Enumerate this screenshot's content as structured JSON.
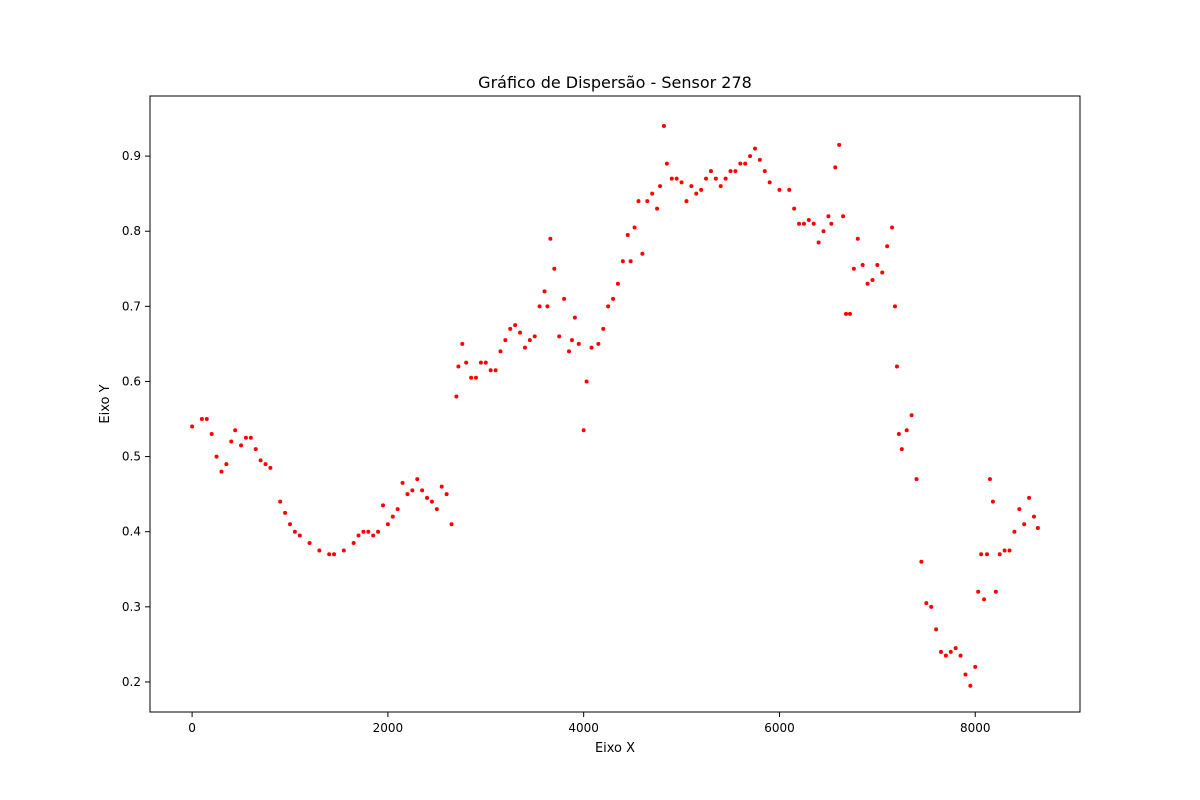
{
  "chart_data": {
    "type": "scatter",
    "title": "Gráfico de Dispersão - Sensor 278",
    "xlabel": "Eixo X",
    "ylabel": "Eixo Y",
    "xlim": [
      -430,
      9070
    ],
    "ylim": [
      0.16,
      0.98
    ],
    "xticks": [
      0,
      2000,
      4000,
      6000,
      8000
    ],
    "yticks": [
      0.2,
      0.3,
      0.4,
      0.5,
      0.6,
      0.7,
      0.8,
      0.9
    ],
    "grid": false,
    "legend": "none",
    "marker_color": "#ff0000",
    "series": [
      {
        "x": [
          0,
          100,
          150,
          200,
          250,
          300,
          350,
          400,
          440,
          500,
          550,
          600,
          650,
          700,
          750,
          800,
          900,
          950,
          1000,
          1050,
          1100,
          1200,
          1300,
          1400,
          1450,
          1550,
          1650,
          1700,
          1750,
          1800,
          1850,
          1900,
          1950,
          2000,
          2050,
          2100,
          2150,
          2200,
          2250,
          2300,
          2350,
          2400,
          2450,
          2500,
          2550,
          2600,
          2650,
          2700,
          2720,
          2760,
          2800,
          2850,
          2900,
          2950,
          3000,
          3050,
          3100,
          3150,
          3200,
          3250,
          3300,
          3350,
          3400,
          3450,
          3500,
          3550,
          3600,
          3630,
          3660,
          3700,
          3750,
          3800,
          3850,
          3880,
          3910,
          3950,
          4000,
          4030,
          4080,
          4150,
          4200,
          4250,
          4300,
          4350,
          4400,
          4450,
          4480,
          4520,
          4560,
          4600,
          4650,
          4700,
          4750,
          4780,
          4820,
          4850,
          4900,
          4950,
          5000,
          5050,
          5100,
          5150,
          5200,
          5250,
          5300,
          5350,
          5400,
          5450,
          5500,
          5550,
          5600,
          5650,
          5700,
          5750,
          5800,
          5850,
          5900,
          6000,
          6100,
          6150,
          6200,
          6250,
          6300,
          6350,
          6400,
          6450,
          6500,
          6530,
          6570,
          6610,
          6650,
          6680,
          6720,
          6760,
          6800,
          6850,
          6900,
          6950,
          7000,
          7050,
          7100,
          7150,
          7180,
          7200,
          7220,
          7250,
          7300,
          7350,
          7400,
          7450,
          7500,
          7550,
          7600,
          7650,
          7700,
          7750,
          7800,
          7850,
          7900,
          7950,
          8000,
          8030,
          8060,
          8090,
          8120,
          8150,
          8180,
          8210,
          8250,
          8300,
          8350,
          8400,
          8450,
          8500,
          8550,
          8600,
          8640
        ],
        "y": [
          0.54,
          0.55,
          0.55,
          0.53,
          0.5,
          0.48,
          0.49,
          0.52,
          0.535,
          0.515,
          0.525,
          0.525,
          0.51,
          0.495,
          0.49,
          0.485,
          0.44,
          0.425,
          0.41,
          0.4,
          0.395,
          0.385,
          0.375,
          0.37,
          0.37,
          0.375,
          0.385,
          0.395,
          0.4,
          0.4,
          0.395,
          0.4,
          0.435,
          0.41,
          0.42,
          0.43,
          0.465,
          0.45,
          0.455,
          0.47,
          0.455,
          0.445,
          0.44,
          0.43,
          0.46,
          0.45,
          0.41,
          0.58,
          0.62,
          0.65,
          0.625,
          0.605,
          0.605,
          0.625,
          0.625,
          0.615,
          0.615,
          0.64,
          0.655,
          0.67,
          0.675,
          0.665,
          0.645,
          0.655,
          0.66,
          0.7,
          0.72,
          0.7,
          0.79,
          0.75,
          0.66,
          0.71,
          0.64,
          0.655,
          0.685,
          0.65,
          0.535,
          0.6,
          0.645,
          0.65,
          0.67,
          0.7,
          0.71,
          0.73,
          0.76,
          0.795,
          0.76,
          0.805,
          0.84,
          0.77,
          0.84,
          0.85,
          0.83,
          0.86,
          0.94,
          0.89,
          0.87,
          0.87,
          0.865,
          0.84,
          0.86,
          0.85,
          0.855,
          0.87,
          0.88,
          0.87,
          0.86,
          0.87,
          0.88,
          0.88,
          0.89,
          0.89,
          0.9,
          0.91,
          0.895,
          0.88,
          0.865,
          0.855,
          0.855,
          0.83,
          0.81,
          0.81,
          0.815,
          0.81,
          0.785,
          0.8,
          0.82,
          0.81,
          0.885,
          0.915,
          0.82,
          0.69,
          0.69,
          0.75,
          0.79,
          0.755,
          0.73,
          0.735,
          0.755,
          0.745,
          0.78,
          0.805,
          0.7,
          0.62,
          0.53,
          0.51,
          0.535,
          0.555,
          0.47,
          0.36,
          0.305,
          0.3,
          0.27,
          0.24,
          0.235,
          0.24,
          0.245,
          0.235,
          0.21,
          0.195,
          0.22,
          0.32,
          0.37,
          0.31,
          0.37,
          0.47,
          0.44,
          0.32,
          0.37,
          0.375,
          0.375,
          0.4,
          0.43,
          0.41,
          0.445,
          0.42,
          0.405
        ]
      }
    ]
  }
}
